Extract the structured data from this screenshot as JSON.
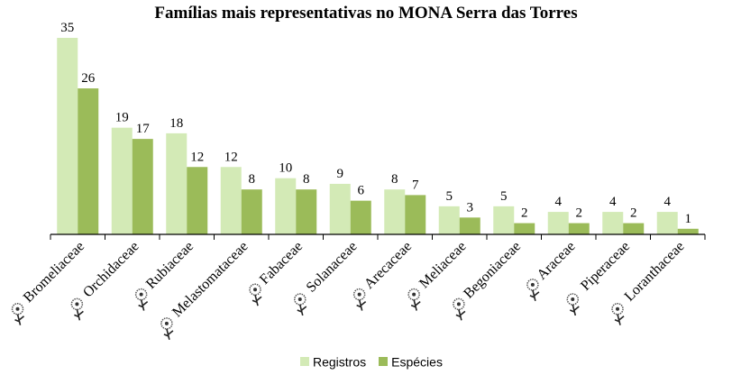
{
  "chart_data": {
    "type": "bar",
    "title": "Famílias mais representativas no MONA Serra das Torres",
    "categories": [
      "Bromeliaceae",
      "Orchidaceae",
      "Rubiaceae",
      "Melastomataceae",
      "Fabaceae",
      "Solanaceae",
      "Arecaceae",
      "Meliaceae",
      "Begoniaceae",
      "Araceae",
      "Piperaceae",
      "Loranthaceae"
    ],
    "series": [
      {
        "name": "Registros",
        "values": [
          35,
          19,
          18,
          12,
          10,
          9,
          8,
          5,
          5,
          4,
          4,
          4
        ],
        "color": "#d3eab6"
      },
      {
        "name": "Espécies",
        "values": [
          26,
          17,
          12,
          8,
          8,
          6,
          7,
          3,
          2,
          2,
          2,
          1
        ],
        "color": "#9bbb59"
      }
    ],
    "ylim": [
      0,
      35
    ],
    "grid": false,
    "data_labels": true,
    "legend_position": "bottom",
    "category_icon": "flower-icon"
  }
}
